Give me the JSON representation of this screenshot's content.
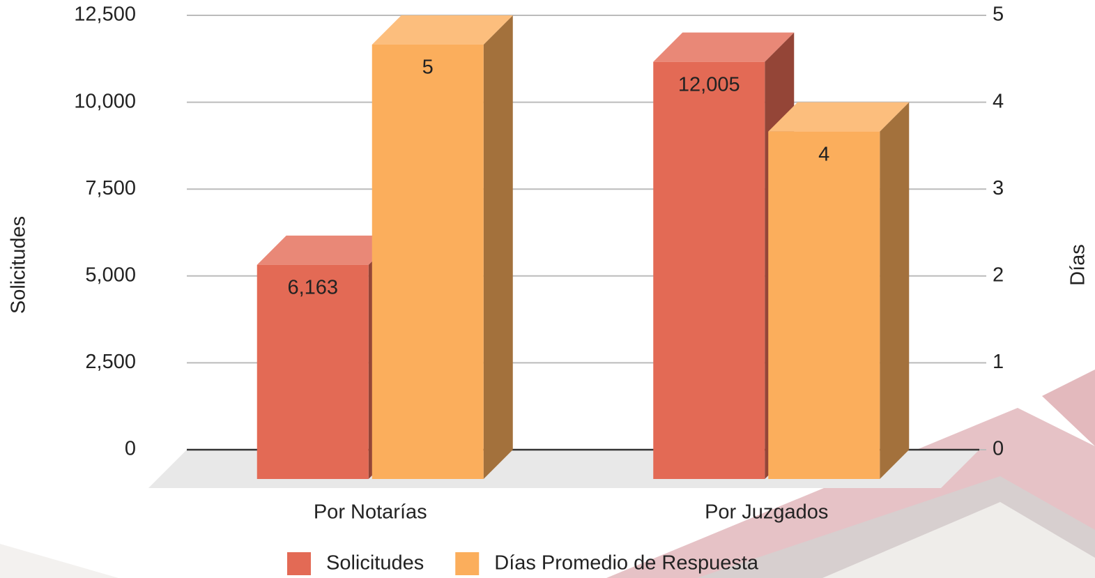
{
  "chart_data": {
    "type": "bar3d",
    "categories": [
      "Por Notarías",
      "Por Juzgados"
    ],
    "series": [
      {
        "name": "Solicitudes",
        "color": "#e36a55",
        "values": [
          6163,
          12005
        ],
        "value_labels": [
          "6,163",
          "12,005"
        ]
      },
      {
        "name": "Días Promedio de Respuesta",
        "color": "#fbae5c",
        "values": [
          5,
          4
        ],
        "axis": "y2"
      }
    ],
    "y_label": "Solicitudes",
    "y2_label": "Días",
    "ylim": [
      0,
      12500
    ],
    "yticks": [
      0,
      {
        "value": 2500,
        "label": "2,500"
      },
      {
        "value": 5000,
        "label": "5,000"
      },
      {
        "value": 7500,
        "label": "7,500"
      },
      {
        "value": 10000,
        "label": "10,000"
      },
      {
        "value": 12500,
        "label": "12,500"
      }
    ],
    "y2lim": [
      0,
      5
    ],
    "y2ticks": [
      0,
      1,
      2,
      3,
      4,
      5
    ],
    "grid": true,
    "legend": "bottom"
  }
}
